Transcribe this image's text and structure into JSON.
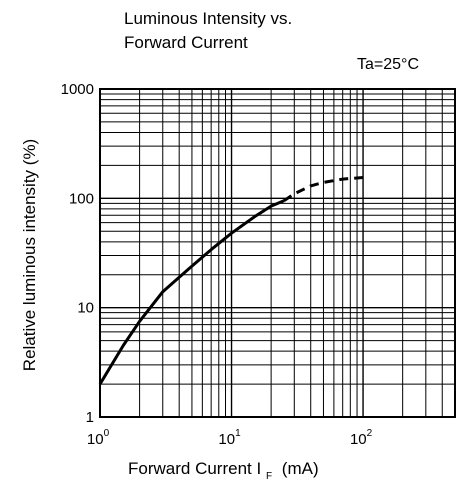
{
  "chart_data": {
    "type": "line",
    "title_lines": [
      "Luminous Intensity vs.",
      "Forward Current"
    ],
    "condition": "Ta=25°C",
    "xlabel": {
      "text": "Forward Current  I",
      "subscript": "F",
      "unit": "(mA)"
    },
    "ylabel": "Relative luminous intensity  (%)",
    "x_scale": "log",
    "y_scale": "log",
    "xlim": [
      1,
      500
    ],
    "ylim": [
      1,
      1000
    ],
    "x_ticks": [
      {
        "value": 1,
        "base": "10",
        "exp": "0"
      },
      {
        "value": 10,
        "base": "10",
        "exp": "1"
      },
      {
        "value": 100,
        "base": "10",
        "exp": "2"
      }
    ],
    "y_ticks": [
      {
        "value": 1,
        "label": "1"
      },
      {
        "value": 10,
        "label": "10"
      },
      {
        "value": 100,
        "label": "100"
      },
      {
        "value": 1000,
        "label": "1000"
      }
    ],
    "grid": true,
    "series": [
      {
        "style": "solid",
        "x": [
          1,
          1.5,
          2,
          3,
          4,
          5,
          7,
          10,
          15,
          20,
          25
        ],
        "y": [
          2,
          4.5,
          7.5,
          14,
          19,
          24,
          34,
          48,
          68,
          85,
          95
        ]
      },
      {
        "style": "dashed",
        "x": [
          25,
          30,
          40,
          50,
          70,
          100
        ],
        "y": [
          95,
          110,
          130,
          140,
          150,
          155
        ]
      }
    ]
  }
}
